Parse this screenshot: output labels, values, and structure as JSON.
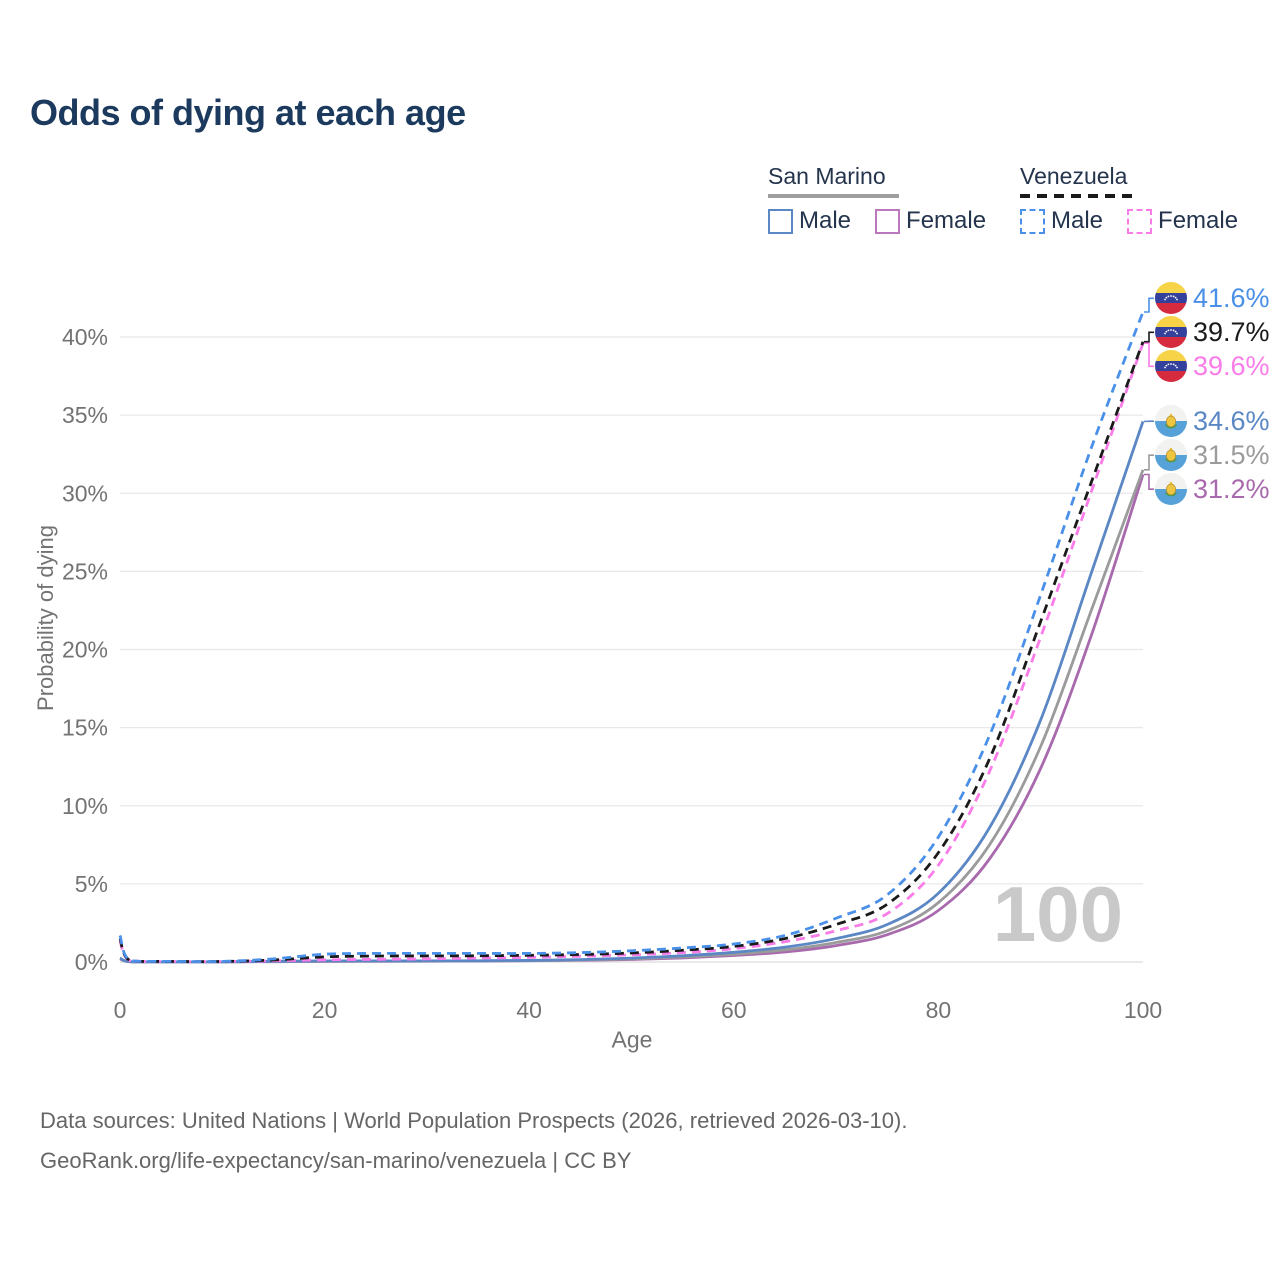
{
  "title": "Odds of dying at each age",
  "watermark": "100",
  "colors": {
    "title": "#1c3a5e",
    "legend_text": "#24344d",
    "axis_text": "#737373",
    "grid": "#e8e8e8",
    "baseline": "#dcdcdc",
    "watermark": "#c9c9c9",
    "footer_text": "#666666",
    "san_marino_underline": "#9e9e9e",
    "venezuela_underline": "#1a1a1a"
  },
  "legend": {
    "groups": [
      {
        "country": "San Marino",
        "line_style": "solid",
        "underline_color": "#9e9e9e",
        "items": [
          {
            "label": "Male",
            "color": "#5b87c5",
            "dashed": false
          },
          {
            "label": "Female",
            "color": "#bd77bc",
            "dashed": false
          }
        ]
      },
      {
        "country": "Venezuela",
        "line_style": "dashed",
        "underline_color": "#1a1a1a",
        "items": [
          {
            "label": "Male",
            "color": "#4a90e8",
            "dashed": true
          },
          {
            "label": "Female",
            "color": "#fa7ce8",
            "dashed": true
          }
        ]
      }
    ]
  },
  "footer": {
    "line1": "Data sources: United Nations | World Population Prospects (2026, retrieved 2026-03-10).",
    "line2": "GeoRank.org/life-expectancy/san-marino/venezuela | CC BY"
  },
  "chart_data": {
    "type": "line",
    "title": "Odds of dying at each age",
    "xlabel": "Age",
    "ylabel": "Probability of dying",
    "xlim": [
      0,
      100
    ],
    "ylim": [
      0,
      43
    ],
    "x_ticks": [
      0,
      20,
      40,
      60,
      80,
      100
    ],
    "y_ticks": [
      0,
      5,
      10,
      15,
      20,
      25,
      30,
      35,
      40
    ],
    "y_tick_suffix": "%",
    "grid": true,
    "legend_position": "top-right",
    "age_counter": "100",
    "x": [
      0,
      1,
      5,
      10,
      15,
      20,
      25,
      30,
      35,
      40,
      45,
      50,
      55,
      60,
      65,
      70,
      75,
      80,
      85,
      90,
      95,
      100
    ],
    "series": [
      {
        "name": "Venezuela Male",
        "color": "#4a90e8",
        "dashed": true,
        "flag": "venezuela",
        "end_label": "41.6%",
        "end_value": 41.6,
        "values": [
          1.7,
          0.1,
          0.04,
          0.04,
          0.2,
          0.5,
          0.55,
          0.55,
          0.55,
          0.55,
          0.6,
          0.72,
          0.9,
          1.15,
          1.7,
          2.8,
          4.3,
          8.0,
          14.5,
          23.5,
          33.0,
          41.6
        ]
      },
      {
        "name": "Venezuela Total",
        "color": "#1a1a1a",
        "dashed": true,
        "flag": "venezuela",
        "end_label": "39.7%",
        "end_value": 39.7,
        "values": [
          1.5,
          0.09,
          0.035,
          0.035,
          0.13,
          0.33,
          0.38,
          0.39,
          0.4,
          0.43,
          0.48,
          0.58,
          0.75,
          1.0,
          1.5,
          2.4,
          3.7,
          7.0,
          13.0,
          21.8,
          30.8,
          39.7
        ]
      },
      {
        "name": "Venezuela Female",
        "color": "#fa7ce8",
        "dashed": true,
        "flag": "venezuela",
        "end_label": "39.6%",
        "end_value": 39.6,
        "values": [
          1.35,
          0.08,
          0.03,
          0.03,
          0.08,
          0.14,
          0.17,
          0.2,
          0.25,
          0.3,
          0.37,
          0.46,
          0.6,
          0.85,
          1.3,
          2.0,
          3.1,
          6.2,
          12.2,
          20.8,
          30.2,
          39.6
        ]
      },
      {
        "name": "San Marino Male",
        "color": "#5b87c5",
        "dashed": false,
        "flag": "san-marino",
        "end_label": "34.6%",
        "end_value": 34.6,
        "values": [
          0.25,
          0.02,
          0.01,
          0.01,
          0.04,
          0.07,
          0.07,
          0.07,
          0.08,
          0.1,
          0.15,
          0.25,
          0.4,
          0.62,
          0.95,
          1.5,
          2.4,
          4.4,
          8.6,
          15.5,
          25.0,
          34.6
        ]
      },
      {
        "name": "San Marino Total",
        "color": "#9b9b9b",
        "dashed": false,
        "flag": "san-marino",
        "end_label": "31.5%",
        "end_value": 31.5,
        "values": [
          0.22,
          0.018,
          0.01,
          0.01,
          0.03,
          0.05,
          0.055,
          0.06,
          0.07,
          0.09,
          0.13,
          0.2,
          0.32,
          0.5,
          0.78,
          1.25,
          2.0,
          3.8,
          7.5,
          13.8,
          22.6,
          31.5
        ]
      },
      {
        "name": "San Marino Female",
        "color": "#a869ad",
        "dashed": false,
        "flag": "san-marino",
        "end_label": "31.2%",
        "end_value": 31.2,
        "values": [
          0.2,
          0.015,
          0.008,
          0.008,
          0.02,
          0.035,
          0.04,
          0.05,
          0.06,
          0.08,
          0.11,
          0.16,
          0.26,
          0.42,
          0.64,
          1.05,
          1.75,
          3.3,
          6.6,
          12.4,
          21.0,
          31.2
        ]
      }
    ]
  }
}
